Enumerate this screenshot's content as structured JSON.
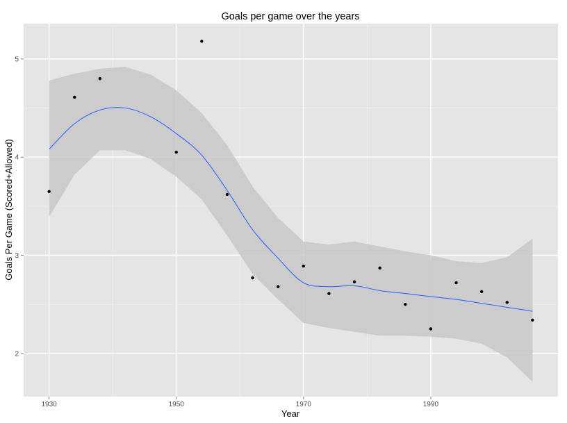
{
  "chart_data": {
    "type": "scatter",
    "title": "Goals per game over the years",
    "xlabel": "Year",
    "ylabel": "Goals Per Game (Scored+Allowed)",
    "xlim": [
      1926,
      2010
    ],
    "ylim": [
      1.56,
      5.36
    ],
    "x_ticks": [
      1930,
      1950,
      1970,
      1990
    ],
    "x_tick_labels": [
      "1930",
      "1950",
      "1970",
      "1990"
    ],
    "y_ticks": [
      2,
      3,
      4,
      5
    ],
    "y_tick_labels": [
      "2",
      "3",
      "4",
      "5"
    ],
    "grid": true,
    "legend": "none",
    "colors": {
      "panel_background": "#e5e5e5",
      "grid_major": "#ffffff",
      "grid_minor": "#f0f0f0",
      "point": "#000000",
      "smooth_line": "#3366ff",
      "confidence_band": "#c8c8c8"
    },
    "points": [
      {
        "x": 1930,
        "y": 3.65
      },
      {
        "x": 1934,
        "y": 4.61
      },
      {
        "x": 1938,
        "y": 4.8
      },
      {
        "x": 1950,
        "y": 4.05
      },
      {
        "x": 1954,
        "y": 5.18
      },
      {
        "x": 1958,
        "y": 3.62
      },
      {
        "x": 1962,
        "y": 2.77
      },
      {
        "x": 1966,
        "y": 2.68
      },
      {
        "x": 1970,
        "y": 2.89
      },
      {
        "x": 1974,
        "y": 2.61
      },
      {
        "x": 1978,
        "y": 2.73
      },
      {
        "x": 1982,
        "y": 2.87
      },
      {
        "x": 1986,
        "y": 2.5
      },
      {
        "x": 1990,
        "y": 2.25
      },
      {
        "x": 1994,
        "y": 2.72
      },
      {
        "x": 1998,
        "y": 2.63
      },
      {
        "x": 2002,
        "y": 2.52
      },
      {
        "x": 2006,
        "y": 2.34
      }
    ],
    "smooth": {
      "x": [
        1930,
        1934,
        1938,
        1942,
        1946,
        1950,
        1954,
        1958,
        1962,
        1966,
        1970,
        1974,
        1978,
        1982,
        1986,
        1990,
        1994,
        1998,
        2002,
        2006
      ],
      "y": [
        4.08,
        4.34,
        4.48,
        4.5,
        4.41,
        4.24,
        4.02,
        3.66,
        3.26,
        2.97,
        2.72,
        2.68,
        2.69,
        2.64,
        2.61,
        2.58,
        2.55,
        2.51,
        2.47,
        2.43
      ],
      "lower": [
        3.39,
        3.82,
        4.07,
        4.07,
        3.98,
        3.8,
        3.57,
        3.2,
        2.81,
        2.55,
        2.31,
        2.26,
        2.22,
        2.18,
        2.18,
        2.17,
        2.15,
        2.1,
        1.96,
        1.71
      ],
      "upper": [
        4.78,
        4.85,
        4.9,
        4.92,
        4.84,
        4.68,
        4.45,
        4.12,
        3.7,
        3.38,
        3.14,
        3.11,
        3.14,
        3.09,
        3.04,
        3.0,
        2.94,
        2.92,
        2.98,
        3.17
      ]
    }
  }
}
